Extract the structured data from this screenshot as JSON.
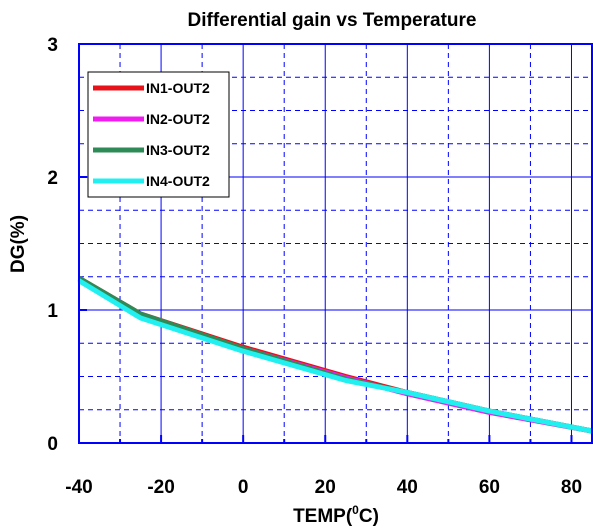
{
  "chart_data": {
    "type": "line",
    "title": "Differential gain vs Temperature",
    "xlabel_main": "TEMP(",
    "xlabel_sup": "0",
    "xlabel_end": "C)",
    "ylabel": "DG(%)",
    "xlim": [
      -40,
      85
    ],
    "ylim": [
      0,
      3
    ],
    "x_major_ticks": [
      -40,
      -20,
      0,
      20,
      40,
      60,
      80
    ],
    "x_tick_labels": [
      "-40",
      "-20",
      "0",
      "20",
      "40",
      "60",
      "80"
    ],
    "y_major_ticks": [
      0,
      1,
      2,
      3
    ],
    "y_tick_labels": [
      "0",
      "1",
      "2",
      "3"
    ],
    "grid": true,
    "legend_position": "top-left",
    "series": [
      {
        "name": "IN1-OUT2",
        "color": "#e8121b",
        "x": [
          -40,
          -25,
          0,
          25,
          40,
          60,
          85
        ],
        "y": [
          1.24,
          0.97,
          0.72,
          0.5,
          0.38,
          0.24,
          0.09
        ]
      },
      {
        "name": "IN2-OUT2",
        "color": "#f01cf0",
        "x": [
          -40,
          -25,
          0,
          25,
          40,
          60,
          85
        ],
        "y": [
          1.23,
          0.96,
          0.71,
          0.49,
          0.37,
          0.23,
          0.09
        ]
      },
      {
        "name": "IN3-OUT2",
        "color": "#2e8b57",
        "x": [
          -40,
          -25,
          0,
          25,
          40,
          60,
          85
        ],
        "y": [
          1.24,
          0.97,
          0.71,
          0.48,
          0.38,
          0.24,
          0.09
        ]
      },
      {
        "name": "IN4-OUT2",
        "color": "#22f0f0",
        "x": [
          -40,
          -25,
          0,
          25,
          40,
          60,
          85
        ],
        "y": [
          1.22,
          0.94,
          0.69,
          0.47,
          0.38,
          0.24,
          0.09
        ]
      }
    ]
  }
}
